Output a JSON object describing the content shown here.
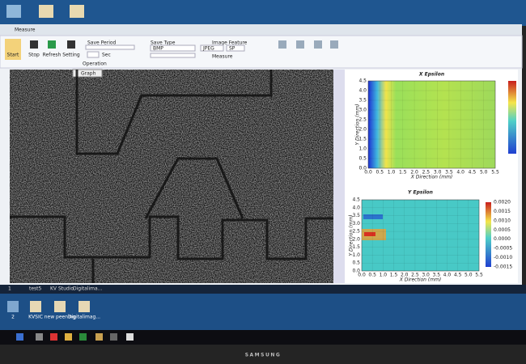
{
  "window": {
    "title": "Measure",
    "buttons": [
      "Start",
      "Stop",
      "Refresh",
      "Setting"
    ],
    "save_period": "Save Period",
    "sec": "Sec",
    "save_type": "Save Type",
    "save_type_value": "BMP",
    "image_feature": "Image Feature",
    "image_feature_value": "JPEG",
    "image_feature_value2": "SP",
    "measure": "Measure",
    "group_label": "Operation",
    "image_tab": "Graph"
  },
  "plots": [
    {
      "title": "X Epsilon",
      "xlabel": "X Direction (mm)",
      "ylabel": "Y Direction (mm)",
      "xticks": [
        "0.0",
        "0.5",
        "1.0",
        "1.5",
        "2.0",
        "2.5",
        "3.0",
        "3.5",
        "4.0",
        "4.5",
        "5.0",
        "5.5"
      ],
      "yticks": [
        "0.0",
        "0.5",
        "1.0",
        "1.5",
        "2.0",
        "2.5",
        "3.0",
        "3.5",
        "4.0",
        "4.5"
      ]
    },
    {
      "title": "Y Epsilon",
      "xlabel": "X Direction (mm)",
      "ylabel": "Y Direction (mm)",
      "xticks": [
        "0.0",
        "0.5",
        "1.0",
        "1.5",
        "2.0",
        "2.5",
        "3.0",
        "3.5",
        "4.0",
        "4.5",
        "5.0",
        "5.5"
      ],
      "yticks": [
        "0.0",
        "0.5",
        "1.0",
        "1.5",
        "2.0",
        "2.5",
        "3.0",
        "3.5",
        "4.0",
        "4.5"
      ],
      "colorbar_ticks": [
        "0.0020",
        "0.0015",
        "0.0010",
        "0.0005",
        "0.0000",
        "-0.0005",
        "-0.0010",
        "-0.0015"
      ]
    }
  ],
  "taskbar_strip": [
    "1",
    "test5",
    "KV Studio",
    "Digitalima..."
  ],
  "desktop_icons": [
    "2",
    "KVSIC",
    "new peening",
    "Digitalimag..."
  ],
  "brand": "SAMSUNG"
}
